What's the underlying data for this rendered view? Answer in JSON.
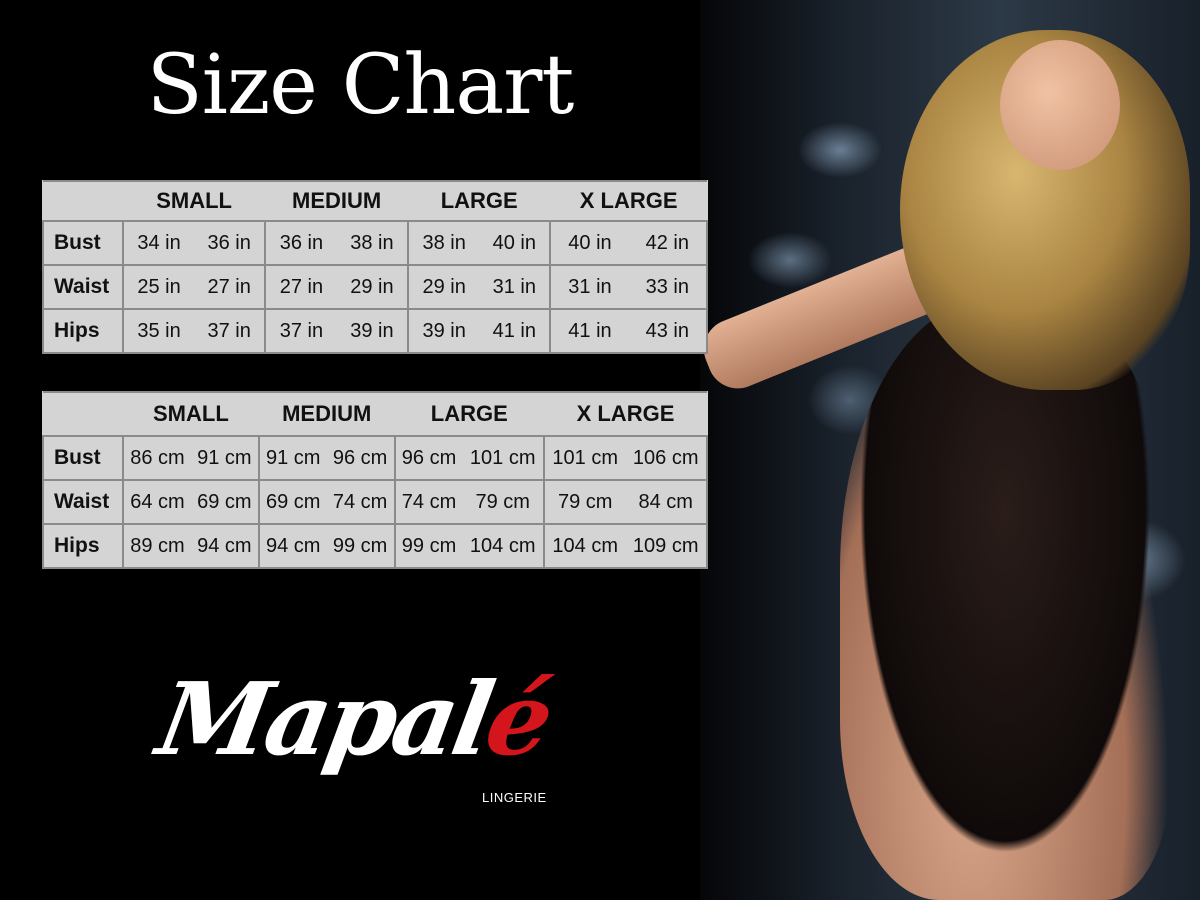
{
  "title": "Size Chart",
  "sizes": [
    "SMALL",
    "MEDIUM",
    "LARGE",
    "X LARGE"
  ],
  "inches_table": {
    "rows": [
      {
        "label": "Bust",
        "values": [
          "34 in",
          "36 in",
          "36 in",
          "38 in",
          "38 in",
          "40 in",
          "40 in",
          "42 in"
        ]
      },
      {
        "label": "Waist",
        "values": [
          "25 in",
          "27 in",
          "27 in",
          "29 in",
          "29 in",
          "31 in",
          "31 in",
          "33 in"
        ]
      },
      {
        "label": "Hips",
        "values": [
          "35 in",
          "37 in",
          "37 in",
          "39 in",
          "39 in",
          "41 in",
          "41 in",
          "43 in"
        ]
      }
    ]
  },
  "cm_table": {
    "rows": [
      {
        "label": "Bust",
        "values": [
          "86 cm",
          "91 cm",
          "91 cm",
          "96 cm",
          "96 cm",
          "101 cm",
          "101 cm",
          "106 cm"
        ]
      },
      {
        "label": "Waist",
        "values": [
          "64 cm",
          "69 cm",
          "69 cm",
          "74 cm",
          "74 cm",
          "79 cm",
          "79 cm",
          "84 cm"
        ]
      },
      {
        "label": "Hips",
        "values": [
          "89 cm",
          "94 cm",
          "94 cm",
          "99 cm",
          "99 cm",
          "104 cm",
          "104 cm",
          "109 cm"
        ]
      }
    ]
  },
  "brand": {
    "name_main": "Mapal",
    "name_accent": "é",
    "tagline": "LINGERIE",
    "accent_color": "#d4151c"
  }
}
